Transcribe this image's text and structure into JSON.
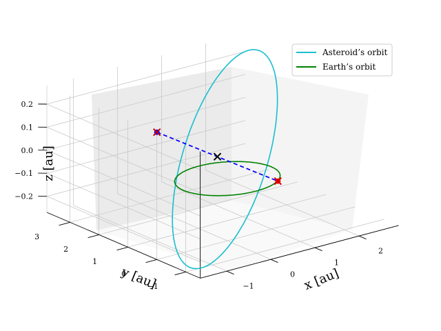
{
  "chart_data": {
    "type": "line3d",
    "title": "",
    "xlabel": "$x$ [au]",
    "ylabel": "$y$ [au]",
    "zlabel": "$z$ [au]",
    "xlabel_text": "x [au]",
    "ylabel_text": "y [au]",
    "zlabel_text": "z [au]",
    "xlim": [
      -1.6,
      2.9
    ],
    "ylim": [
      -1.5,
      3.8
    ],
    "zlim": [
      -0.27,
      0.28
    ],
    "xticks": [
      "−1",
      "0",
      "1",
      "2"
    ],
    "xtick_values": [
      -1,
      0,
      1,
      2
    ],
    "yticks": [
      "−1",
      "0",
      "1",
      "2",
      "3"
    ],
    "ytick_values": [
      -1,
      0,
      1,
      2,
      3
    ],
    "zticks": [
      "−0.2",
      "−0.1",
      "0.0",
      "0.1",
      "0.2"
    ],
    "ztick_values": [
      -0.2,
      -0.1,
      0.0,
      0.1,
      0.2
    ],
    "grid": true,
    "legend_position": "top-right",
    "series": [
      {
        "name": "Asteroid's orbit",
        "kind": "ellipse",
        "color": "#17becf",
        "center": [
          0.6,
          1.0,
          0.0
        ],
        "semi_axis_1": [
          2.1,
          2.2,
          0.25
        ],
        "semi_axis_2": [
          -0.6,
          0.6,
          0.0
        ]
      },
      {
        "name": "Earth's orbit",
        "kind": "circle",
        "color": "#008000",
        "center": [
          0,
          0,
          0
        ],
        "radius": 1.0
      }
    ],
    "line_segment": {
      "color": "#0000ff",
      "style": "dashed",
      "from": [
        -0.45,
        1.75,
        0.13
      ],
      "to": [
        0.85,
        -0.45,
        -0.03
      ]
    },
    "markers": [
      {
        "type": "dot",
        "color": "#0000ff",
        "xyz": [
          -0.45,
          1.75,
          0.13
        ]
      },
      {
        "type": "dot",
        "color": "#ff0000",
        "xyz": [
          0.85,
          -0.45,
          -0.03
        ]
      },
      {
        "type": "x",
        "color": "#cc0000",
        "xyz": [
          -0.45,
          1.75,
          0.13
        ]
      },
      {
        "type": "x",
        "color": "#cc0000",
        "xyz": [
          0.85,
          -0.45,
          -0.03
        ]
      },
      {
        "type": "x",
        "color": "#000000",
        "xyz": [
          0.2,
          0.65,
          0.05
        ]
      }
    ]
  },
  "legend": {
    "items": [
      {
        "label": "Asteroid’s orbit",
        "color": "#17becf"
      },
      {
        "label": "Earth’s orbit",
        "color": "#008000"
      }
    ]
  }
}
